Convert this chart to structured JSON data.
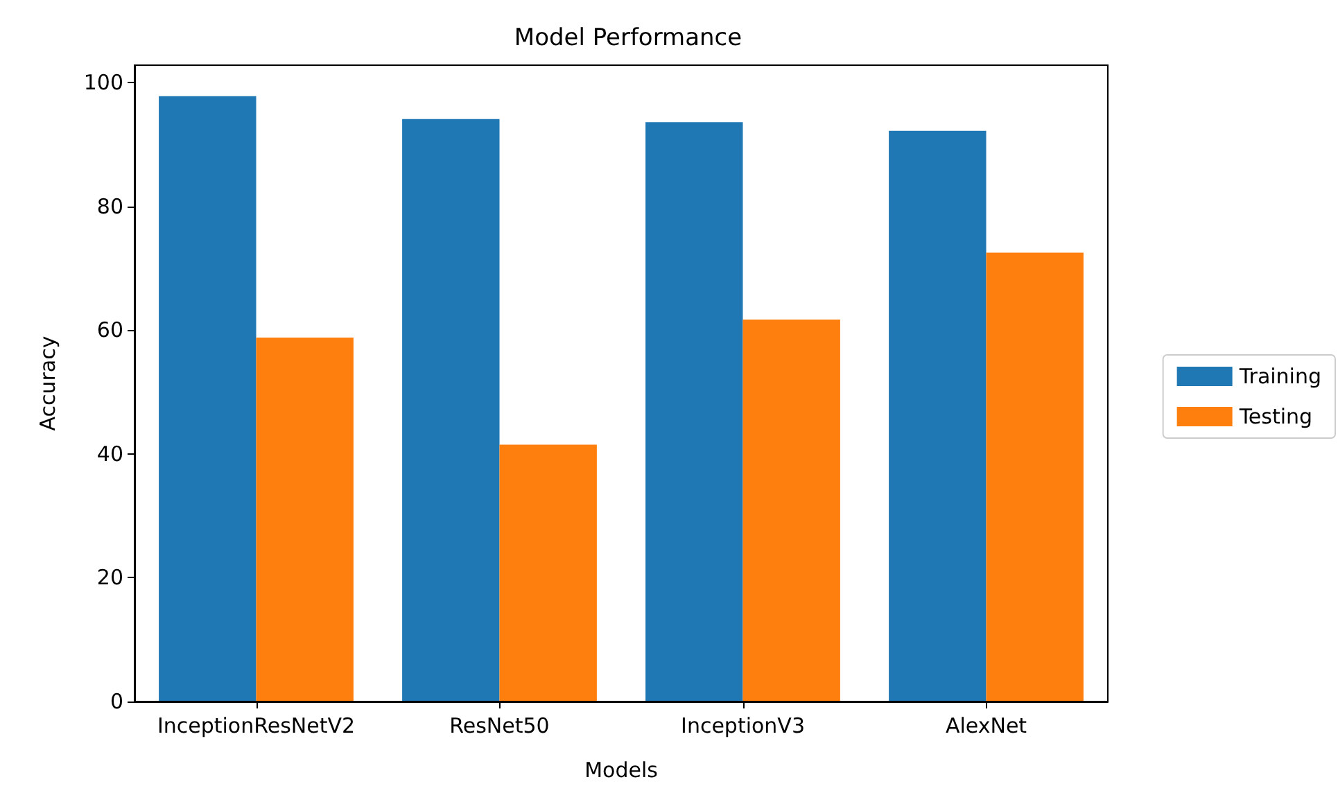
{
  "chart_data": {
    "type": "bar",
    "title": "Model Performance",
    "xlabel": "Models",
    "ylabel": "Accuracy",
    "categories": [
      "InceptionResNetV2",
      "ResNet50",
      "InceptionV3",
      "AlexNet"
    ],
    "series": [
      {
        "name": "Training",
        "color": "#1f77b4",
        "values": [
          97.8,
          94.1,
          93.6,
          92.2
        ]
      },
      {
        "name": "Testing",
        "color": "#ff7f0e",
        "values": [
          58.8,
          41.5,
          61.7,
          72.5
        ]
      }
    ],
    "ylim": [
      0,
      102.8
    ],
    "yticks": [
      0,
      20,
      40,
      60,
      80,
      100
    ],
    "grid": false,
    "legend": "right"
  }
}
